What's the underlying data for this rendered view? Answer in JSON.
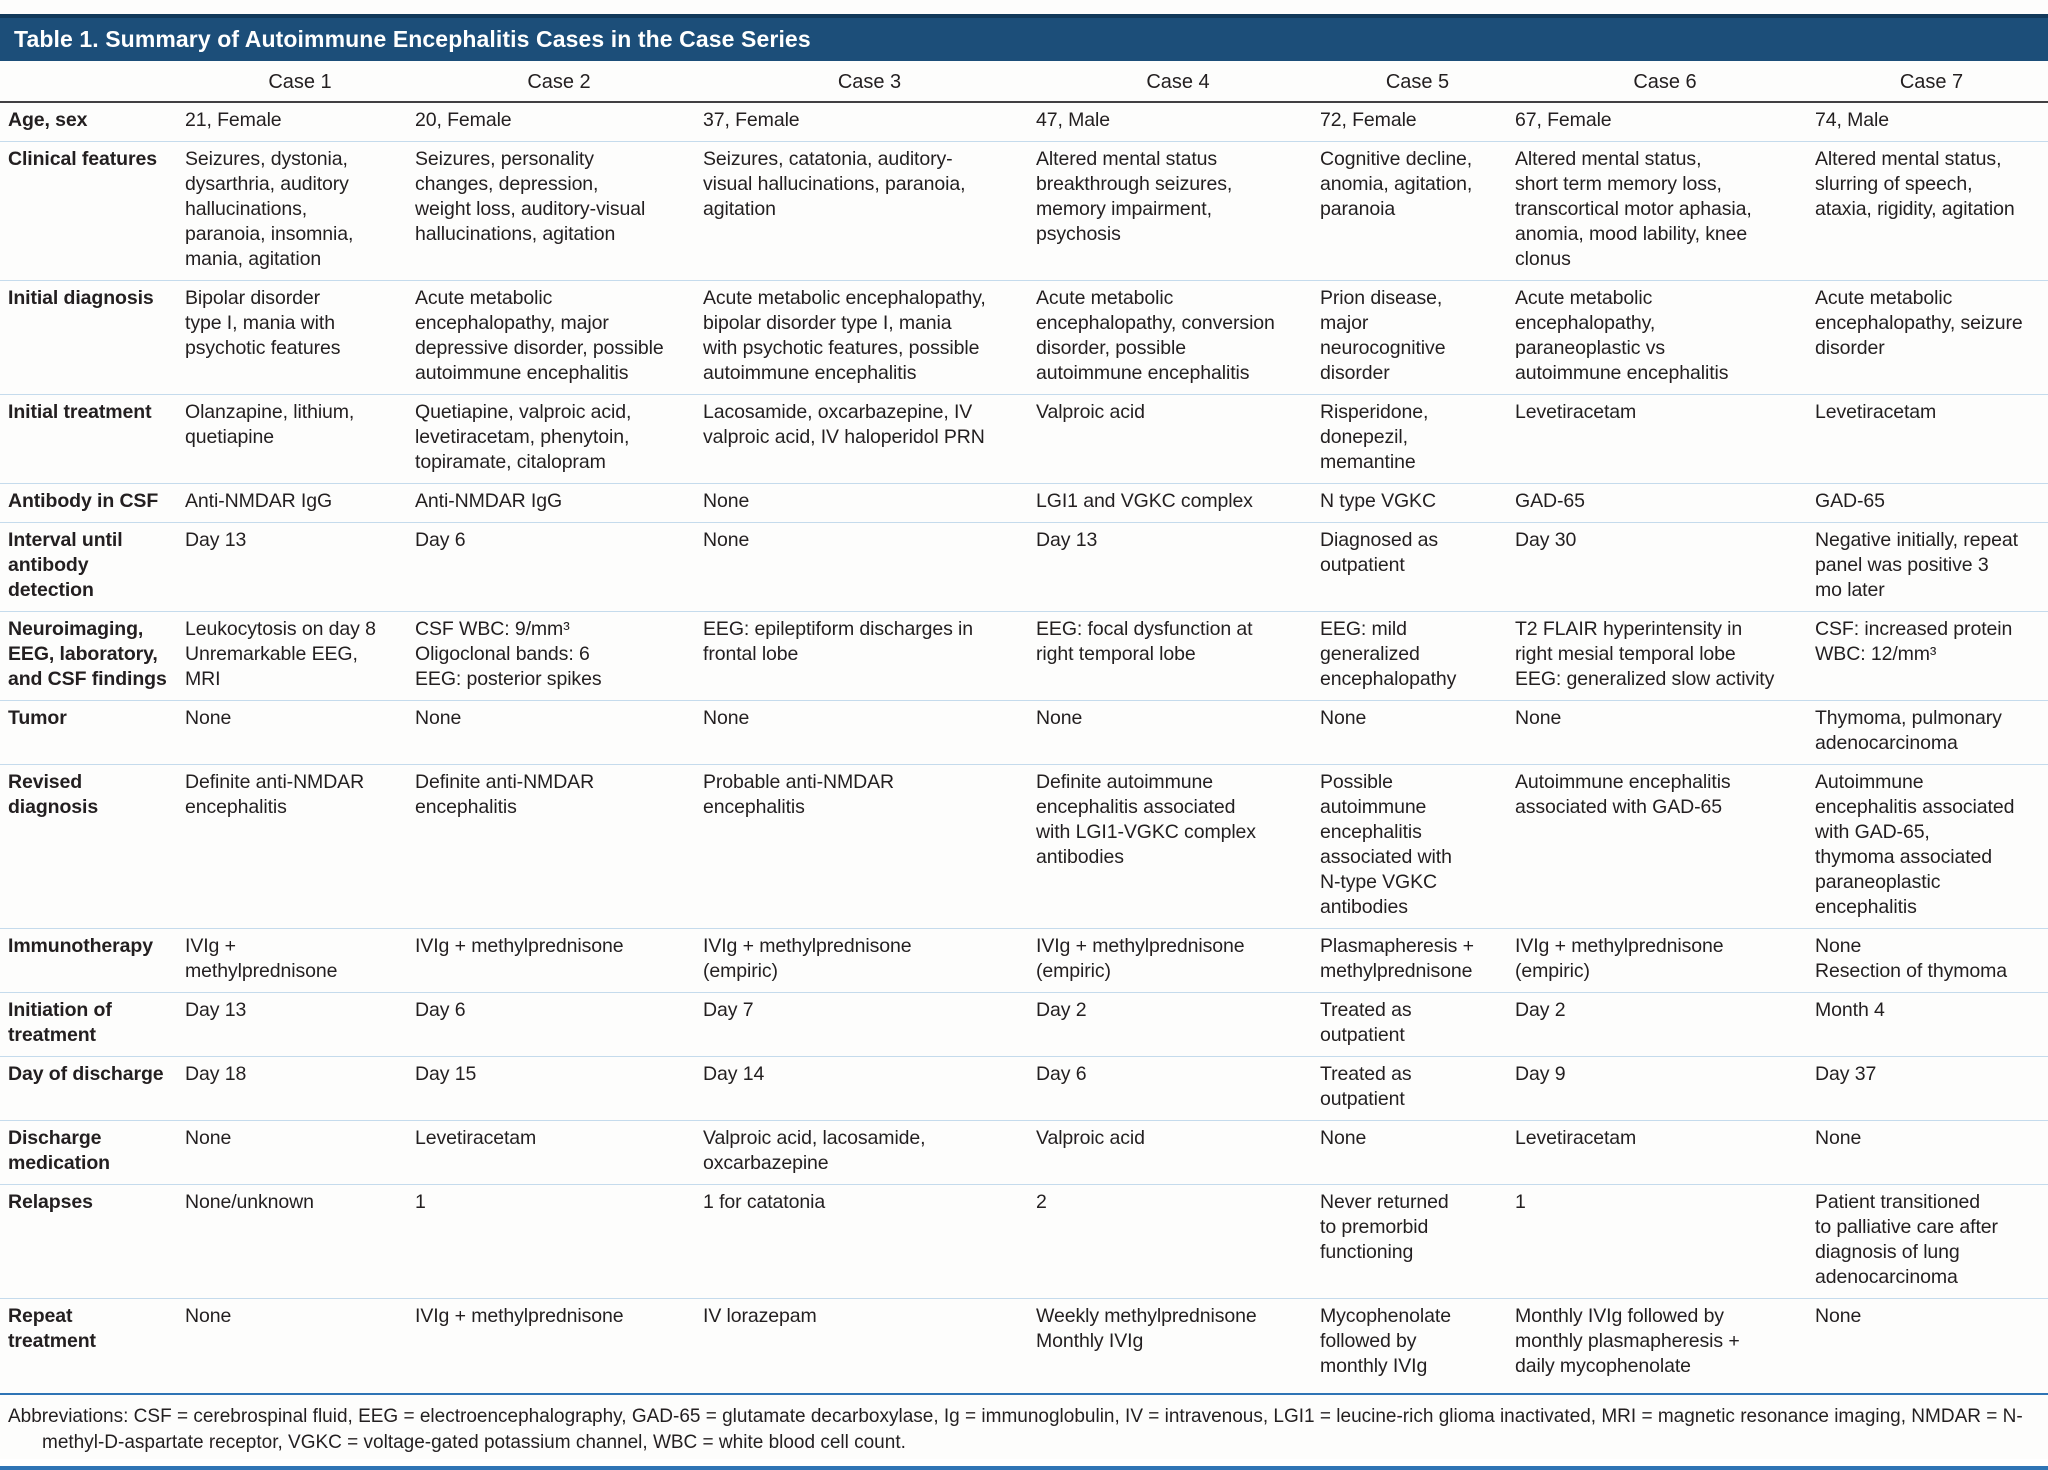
{
  "title": "Table 1. Summary of Autoimmune Encephalitis Cases in the Case Series",
  "columns": [
    "",
    "Case 1",
    "Case 2",
    "Case 3",
    "Case 4",
    "Case 5",
    "Case 6",
    "Case 7"
  ],
  "rows": [
    {
      "label": "Age, sex",
      "cells": [
        "21, Female",
        "20, Female",
        "37, Female",
        "47, Male",
        "72, Female",
        "67, Female",
        "74, Male"
      ]
    },
    {
      "label": "Clinical features",
      "cells": [
        "Seizures, dystonia,\ndysarthria, auditory\nhallucinations,\nparanoia, insomnia,\nmania, agitation",
        "Seizures, personality\nchanges, depression,\nweight loss, auditory-visual\nhallucinations, agitation",
        "Seizures, catatonia, auditory-\nvisual hallucinations, paranoia,\nagitation",
        "Altered mental status\nbreakthrough seizures,\nmemory impairment,\npsychosis",
        "Cognitive decline,\nanomia, agitation,\nparanoia",
        "Altered mental status,\nshort term memory loss,\ntranscortical motor aphasia,\nanomia, mood lability, knee\nclonus",
        "Altered mental status,\nslurring of speech,\nataxia, rigidity, agitation"
      ]
    },
    {
      "label": "Initial diagnosis",
      "cells": [
        "Bipolar disorder\ntype I, mania with\npsychotic features",
        "Acute metabolic\nencephalopathy, major\ndepressive disorder, possible\nautoimmune encephalitis",
        "Acute metabolic encephalopathy,\nbipolar disorder type I, mania\nwith psychotic features, possible\nautoimmune encephalitis",
        "Acute metabolic\nencephalopathy, conversion\ndisorder, possible\nautoimmune encephalitis",
        "Prion disease,\nmajor\nneurocognitive\ndisorder",
        "Acute metabolic\nencephalopathy,\nparaneoplastic vs\nautoimmune encephalitis",
        "Acute metabolic\nencephalopathy, seizure\ndisorder"
      ]
    },
    {
      "label": "Initial treatment",
      "cells": [
        "Olanzapine, lithium,\nquetiapine",
        "Quetiapine, valproic acid,\nlevetiracetam, phenytoin,\ntopiramate, citalopram",
        "Lacosamide, oxcarbazepine, IV\nvalproic acid, IV haloperidol PRN",
        "Valproic acid",
        "Risperidone,\ndonepezil,\nmemantine",
        "Levetiracetam",
        "Levetiracetam"
      ]
    },
    {
      "label": "Antibody in CSF",
      "cells": [
        "Anti-NMDAR IgG",
        "Anti-NMDAR IgG",
        "None",
        "LGI1 and VGKC complex",
        "N type VGKC",
        "GAD-65",
        "GAD-65"
      ]
    },
    {
      "label": "Interval until\nantibody\ndetection",
      "cells": [
        "Day 13",
        "Day 6",
        "None",
        "Day 13",
        "Diagnosed as\noutpatient",
        "Day 30",
        "Negative initially, repeat\npanel was positive 3\nmo later"
      ]
    },
    {
      "label": "Neuroimaging,\nEEG, laboratory,\nand CSF findings",
      "cells": [
        "Leukocytosis on day 8\nUnremarkable EEG,\nMRI",
        "CSF WBC: 9/mm³\nOligoclonal bands: 6\nEEG: posterior spikes",
        "EEG: epileptiform discharges in\nfrontal lobe",
        "EEG: focal dysfunction at\nright temporal lobe",
        "EEG: mild\ngeneralized\nencephalopathy",
        "T2 FLAIR hyperintensity in\nright mesial temporal lobe\nEEG: generalized slow activity",
        "CSF: increased protein\nWBC: 12/mm³"
      ]
    },
    {
      "label": "Tumor",
      "cells": [
        "None",
        "None",
        "None",
        "None",
        "None",
        "None",
        "Thymoma, pulmonary\nadenocarcinoma"
      ]
    },
    {
      "label": "Revised\ndiagnosis",
      "cells": [
        "Definite anti-NMDAR\nencephalitis",
        "Definite anti-NMDAR\nencephalitis",
        "Probable anti-NMDAR\nencephalitis",
        "Definite autoimmune\nencephalitis associated\nwith LGI1-VGKC complex\nantibodies",
        "Possible\nautoimmune\nencephalitis\nassociated with\nN-type VGKC\nantibodies",
        "Autoimmune encephalitis\nassociated with GAD-65",
        "Autoimmune\nencephalitis associated\nwith GAD-65,\nthymoma associated\nparaneoplastic\nencephalitis"
      ]
    },
    {
      "label": "Immunotherapy",
      "cells": [
        "IVIg +\nmethylprednisone",
        "IVIg + methylprednisone",
        "IVIg + methylprednisone\n(empiric)",
        "IVIg + methylprednisone\n(empiric)",
        "Plasmapheresis +\nmethylprednisone",
        "IVIg + methylprednisone\n(empiric)",
        "None\nResection of thymoma"
      ]
    },
    {
      "label": "Initiation of\ntreatment",
      "cells": [
        "Day 13",
        "Day 6",
        "Day 7",
        "Day 2",
        "Treated as\noutpatient",
        "Day 2",
        "Month 4"
      ]
    },
    {
      "label": "Day of discharge",
      "cells": [
        "Day 18",
        "Day 15",
        "Day 14",
        "Day 6",
        "Treated as\noutpatient",
        "Day 9",
        "Day 37"
      ]
    },
    {
      "label": "Discharge\nmedication",
      "cells": [
        "None",
        "Levetiracetam",
        "Valproic acid, lacosamide,\noxcarbazepine",
        "Valproic acid",
        "None",
        "Levetiracetam",
        "None"
      ]
    },
    {
      "label": "Relapses",
      "cells": [
        "None/unknown",
        "1",
        "1 for catatonia",
        "2",
        "Never returned\nto premorbid\nfunctioning",
        "1",
        "Patient transitioned\nto palliative care after\ndiagnosis of lung\nadenocarcinoma"
      ]
    },
    {
      "label": "Repeat\ntreatment",
      "cells": [
        "None",
        "IVIg + methylprednisone",
        "IV lorazepam",
        "Weekly methylprednisone\nMonthly IVIg",
        "Mycophenolate\nfollowed by\nmonthly IVIg",
        "Monthly IVIg followed by\nmonthly plasmapheresis +\ndaily mycophenolate",
        "None"
      ]
    }
  ],
  "footnote": "Abbreviations: CSF = cerebrospinal fluid, EEG = electroencephalography, GAD-65 = glutamate decarboxylase, Ig = immunoglobulin, IV = intravenous, LGI1 = leucine-rich glioma inactivated, MRI = magnetic resonance imaging, NMDAR = N-methyl-D-aspartate receptor, VGKC = voltage-gated potassium channel, WBC = white blood cell count.",
  "colors": {
    "title_bar_bg": "#1C4E79",
    "title_bar_top_border": "#12395A",
    "header_rule": "#414042",
    "row_divider": "#C5DBEC",
    "accent_rule": "#2E74B5",
    "text": "#231F20",
    "title_text": "#FFFFFF"
  }
}
